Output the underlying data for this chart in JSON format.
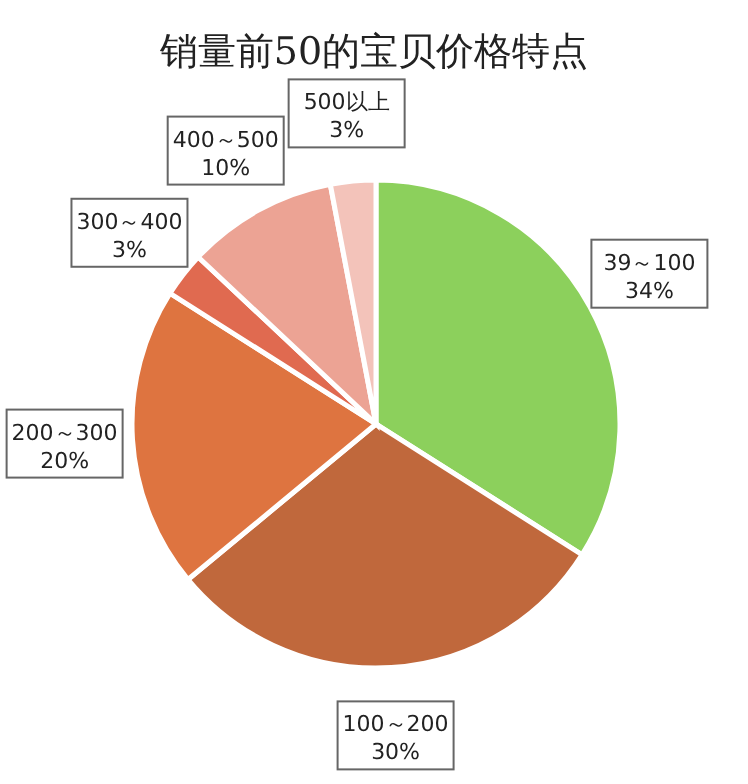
{
  "chart_data": {
    "type": "pie",
    "title": "销量前50的宝贝价格特点",
    "categories": [
      "39～100",
      "100～200",
      "200～300",
      "300～400",
      "400～500",
      "500以上"
    ],
    "values": [
      34,
      30,
      20,
      3,
      10,
      3
    ],
    "value_labels": [
      "34%",
      "30%",
      "20%",
      "3%",
      "10%",
      "3%"
    ],
    "colors": [
      "#8cd05c",
      "#c0683c",
      "#de7440",
      "#e06a50",
      "#eca394",
      "#f3c3ba"
    ]
  }
}
